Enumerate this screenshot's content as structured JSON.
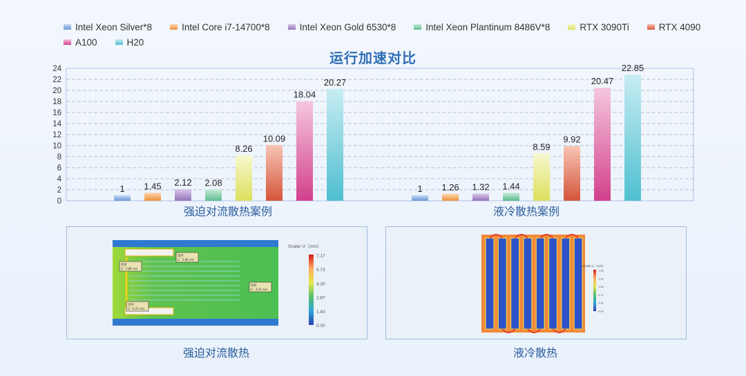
{
  "chart_data": {
    "type": "bar",
    "title": "运行加速对比",
    "groups": [
      "强迫对流散热案例",
      "液冷散热案例"
    ],
    "series": [
      {
        "name": "Intel Xeon Silver*8",
        "values": [
          1,
          1
        ],
        "color": "#6a97d6",
        "color_light": "#c7dbf3"
      },
      {
        "name": "Intel Core i7-14700*8",
        "values": [
          1.45,
          1.26
        ],
        "color": "#f0903a",
        "color_light": "#fbd7b0"
      },
      {
        "name": "Intel Xeon Gold 6530*8",
        "values": [
          2.12,
          1.32
        ],
        "color": "#9473b8",
        "color_light": "#d9c9ea"
      },
      {
        "name": "Intel Xeon Plantinum 8486V*8",
        "values": [
          2.08,
          1.44
        ],
        "color": "#5dbc8f",
        "color_light": "#c8ead8"
      },
      {
        "name": "RTX 3090Ti",
        "values": [
          8.26,
          8.59
        ],
        "color": "#dce05c",
        "color_light": "#f7f8cf"
      },
      {
        "name": "RTX 4090",
        "values": [
          10.09,
          9.92
        ],
        "color": "#d4553a",
        "color_light": "#f8c4b4"
      },
      {
        "name": "A100",
        "values": [
          18.04,
          20.47
        ],
        "color": "#d2408c",
        "color_light": "#f5c7de"
      },
      {
        "name": "H20",
        "values": [
          20.27,
          22.85
        ],
        "color": "#4fbfd0",
        "color_light": "#c7ecf2"
      }
    ],
    "value_labels": [
      [
        "1",
        "1.45",
        "2.12",
        "2.08",
        "8.26",
        "10.09",
        "18.04",
        "20.27"
      ],
      [
        "1",
        "1.26",
        "1.32",
        "1.44",
        "8.59",
        "9.92",
        "20.47",
        "22.85"
      ]
    ],
    "ylim": [
      0,
      24
    ],
    "yticks": [
      "0",
      "2",
      "4",
      "6",
      "8",
      "10",
      "12",
      "14",
      "16",
      "18",
      "20",
      "22",
      "24"
    ],
    "grid": true,
    "legend_position": "top"
  },
  "images": [
    {
      "caption": "强迫对流散热",
      "scale": {
        "title": "Scalar U（m/s）",
        "ticks": [
          "7.17",
          "5.73",
          "4.30",
          "2.87",
          "1.43",
          "0.00"
        ]
      },
      "probes": [
        {
          "label": "切片",
          "value": "U : 3.86 m/s"
        },
        {
          "label": "切片",
          "value": "U : 3.86 m/s"
        },
        {
          "label": "切片",
          "value": "U : 6.21 m/s"
        },
        {
          "label": "切片",
          "value": "U : 3.41 m/s"
        }
      ]
    },
    {
      "caption": "液冷散热",
      "scale": {
        "title": "Scalar U（m/s）",
        "ticks": [
          "1.80",
          "1.44",
          "1.08",
          "0.72",
          "0.36",
          "0.00"
        ]
      }
    }
  ]
}
